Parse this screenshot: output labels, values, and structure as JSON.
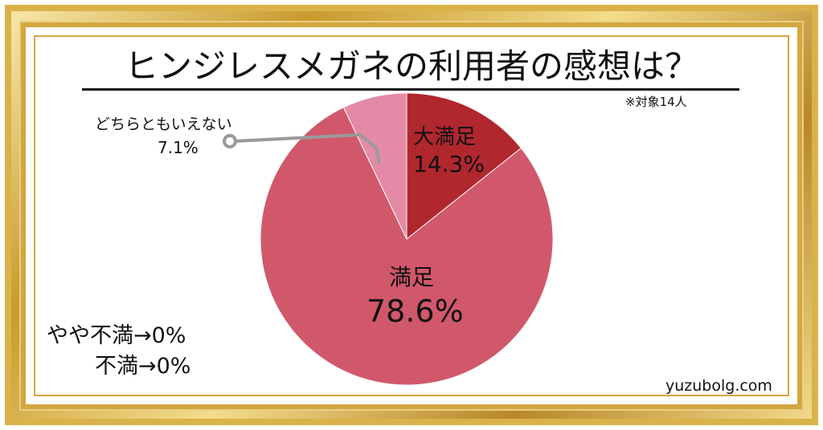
{
  "title": "ヒンジレスメガネの利用者の感想は？",
  "note": "※対象14人",
  "credit": "yuzubolg.com",
  "colors": {
    "great": "#b0282e",
    "satisfied": "#d0586a",
    "neutral": "#e48aa6",
    "frame_gold": "#d2a741",
    "leader_line": "#9a9a9a"
  },
  "chart_data": {
    "type": "pie",
    "categories": [
      "大満足",
      "満足",
      "どちらともいえない",
      "やや不満",
      "不満"
    ],
    "values": [
      14.3,
      78.6,
      7.1,
      0,
      0
    ],
    "value_labels": [
      "14.3%",
      "78.6%",
      "7.1%",
      "0%",
      "0%"
    ],
    "zero_entries_text": [
      "やや不満→0%",
      "不満→0%"
    ]
  }
}
